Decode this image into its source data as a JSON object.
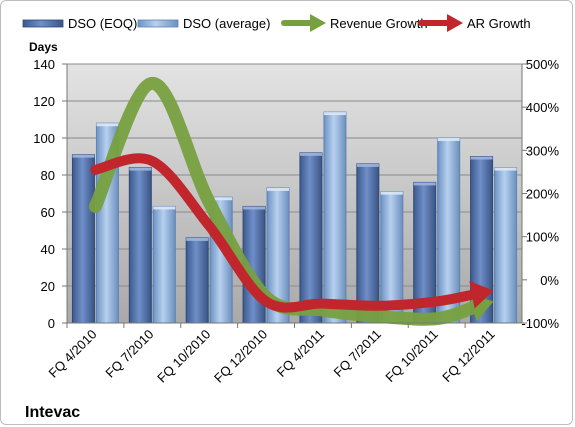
{
  "chart_data": {
    "type": "bar",
    "company": "Intevac",
    "categories": [
      "FQ 4/2010",
      "FQ 7/2010",
      "FQ 10/2010",
      "FQ 12/2010",
      "FQ 4/2011",
      "FQ 7/2011",
      "FQ 10/2011",
      "FQ 12/2011"
    ],
    "ylabel": "Days",
    "ylim": [
      0,
      140
    ],
    "yticks": [
      0,
      20,
      40,
      60,
      80,
      100,
      120,
      140
    ],
    "y2lim": [
      -100,
      500
    ],
    "y2ticks": [
      "-100%",
      "0%",
      "100%",
      "200%",
      "300%",
      "400%",
      "500%"
    ],
    "y2tick_values": [
      -100,
      0,
      100,
      200,
      300,
      400,
      500
    ],
    "grid": true,
    "legend_position": "top",
    "series": [
      {
        "name": "DSO (EOQ)",
        "kind": "bar",
        "axis": "left",
        "color": "#4f6fa8",
        "values": [
          91,
          84,
          46,
          63,
          92,
          86,
          76,
          90
        ]
      },
      {
        "name": "DSO (average)",
        "kind": "bar",
        "axis": "left",
        "color": "#8eb4e3",
        "values": [
          108,
          63,
          68,
          73,
          114,
          71,
          100,
          84
        ]
      },
      {
        "name": "Revenue Growth",
        "kind": "line-arrow",
        "axis": "right",
        "color": "#77a040",
        "values": [
          170,
          455,
          180,
          -40,
          -70,
          -85,
          -90,
          -50
        ]
      },
      {
        "name": "AR Growth",
        "kind": "line-arrow",
        "axis": "right",
        "color": "#c0262c",
        "values": [
          255,
          275,
          125,
          -50,
          -55,
          -60,
          -50,
          -25
        ]
      }
    ]
  }
}
